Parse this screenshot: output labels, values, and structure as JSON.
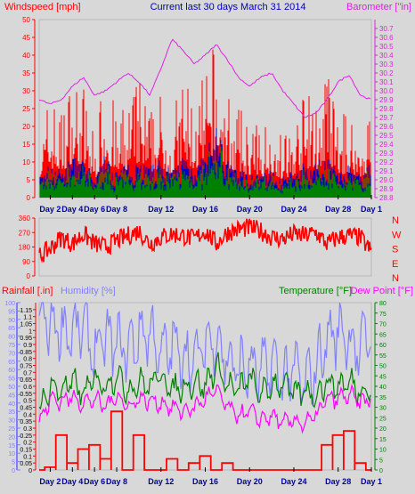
{
  "colors": {
    "background": "#d8d8d8",
    "wind": "#ff0000",
    "gust_fill": "#ff0000",
    "avg_fill": "#0000c0",
    "low_fill": "#008000",
    "barometer": "#e020e0",
    "title": "#0000c0",
    "humidity": "#8080ff",
    "temperature": "#008000",
    "dewpoint": "#ff00ff",
    "rainfall": "#ff0000",
    "axis_right_1": "#e020e0",
    "text_dark": "#000000"
  },
  "x_ticks": [
    "Day 2",
    "Day 4",
    "Day 6",
    "Day 8",
    "Day 12",
    "Day 16",
    "Day 20",
    "Day 24",
    "Day 28",
    "Day 1"
  ],
  "chart_data": [
    {
      "type": "area",
      "title": "Current last 30 days March 31 2014",
      "series": [
        {
          "name": "Windspeed [mph]",
          "axis": "left",
          "ylim": [
            0,
            50
          ],
          "ticks": [
            0,
            5,
            10,
            15,
            20,
            25,
            30,
            35,
            40,
            45,
            50
          ],
          "day": [
            1,
            2,
            3,
            4,
            5,
            6,
            7,
            8,
            9,
            10,
            11,
            12,
            13,
            14,
            15,
            16,
            17,
            18,
            19,
            20,
            21,
            22,
            23,
            24,
            25,
            26,
            27,
            28,
            29,
            30,
            31
          ],
          "gust_max": [
            16,
            24,
            20,
            28,
            26,
            14,
            30,
            18,
            22,
            28,
            20,
            24,
            18,
            30,
            22,
            28,
            37,
            24,
            20,
            18,
            16,
            20,
            14,
            18,
            24,
            22,
            30,
            18,
            20,
            16,
            22
          ],
          "avg_max": [
            6,
            10,
            9,
            12,
            11,
            6,
            13,
            8,
            10,
            12,
            9,
            11,
            8,
            13,
            10,
            12,
            22,
            11,
            9,
            8,
            7,
            9,
            6,
            8,
            11,
            10,
            13,
            8,
            9,
            7,
            10
          ]
        },
        {
          "name": "Barometer [\"in]",
          "axis": "right",
          "ylim": [
            28.8,
            30.8
          ],
          "ticks": [
            28.8,
            28.9,
            29.0,
            29.1,
            29.2,
            29.3,
            29.4,
            29.5,
            29.6,
            29.7,
            29.8,
            29.9,
            30.0,
            30.1,
            30.2,
            30.3,
            30.4,
            30.5,
            30.6,
            30.7
          ],
          "day": [
            1,
            2,
            3,
            4,
            5,
            6,
            7,
            8,
            9,
            10,
            11,
            12,
            13,
            14,
            15,
            16,
            17,
            18,
            19,
            20,
            21,
            22,
            23,
            24,
            25,
            26,
            27,
            28,
            29,
            30,
            31
          ],
          "values": [
            29.9,
            29.85,
            29.9,
            30.05,
            30.15,
            29.95,
            30.0,
            30.1,
            30.2,
            30.1,
            29.95,
            30.25,
            30.58,
            30.45,
            30.3,
            30.4,
            30.52,
            30.35,
            30.15,
            30.05,
            30.15,
            30.2,
            30.0,
            29.85,
            29.7,
            29.75,
            29.9,
            30.1,
            30.18,
            29.95,
            29.9
          ]
        }
      ]
    },
    {
      "type": "line",
      "series": [
        {
          "name": "Wind direction",
          "ylim": [
            0,
            360
          ],
          "ticks": [
            0,
            90,
            180,
            270,
            360
          ],
          "compass": [
            "N",
            "W",
            "S",
            "E",
            "N"
          ],
          "day": [
            1,
            2,
            3,
            4,
            5,
            6,
            7,
            8,
            9,
            10,
            11,
            12,
            13,
            14,
            15,
            16,
            17,
            18,
            19,
            20,
            21,
            22,
            23,
            24,
            25,
            26,
            27,
            28,
            29,
            30,
            31
          ],
          "values": [
            120,
            170,
            240,
            200,
            260,
            200,
            180,
            220,
            250,
            280,
            200,
            240,
            260,
            250,
            230,
            280,
            200,
            270,
            290,
            300,
            280,
            240,
            230,
            260,
            250,
            270,
            200,
            240,
            250,
            240,
            150
          ]
        }
      ]
    },
    {
      "type": "line",
      "series": [
        {
          "name": "Humidity [%]",
          "axis": "left_outer",
          "ylim": [
            0,
            100
          ],
          "ticks": [
            0,
            5,
            10,
            15,
            20,
            25,
            30,
            35,
            40,
            45,
            50,
            55,
            60,
            65,
            70,
            75,
            80,
            85,
            90,
            95,
            100
          ],
          "day": [
            1,
            2,
            3,
            4,
            5,
            6,
            7,
            8,
            9,
            10,
            11,
            12,
            13,
            14,
            15,
            16,
            17,
            18,
            19,
            20,
            21,
            22,
            23,
            24,
            25,
            26,
            27,
            28,
            29,
            30,
            31
          ],
          "values": [
            92,
            88,
            85,
            82,
            86,
            70,
            78,
            75,
            72,
            80,
            84,
            68,
            74,
            70,
            65,
            75,
            80,
            66,
            60,
            62,
            58,
            64,
            55,
            60,
            50,
            62,
            78,
            84,
            80,
            70,
            88
          ]
        },
        {
          "name": "Rainfall [.in]",
          "axis": "left_inner",
          "ylim": [
            0,
            1.2
          ],
          "ticks": [
            0,
            0.05,
            0.1,
            0.15,
            0.2,
            0.25,
            0.3,
            0.35,
            0.4,
            0.45,
            0.5,
            0.55,
            0.6,
            0.65,
            0.7,
            0.75,
            0.8,
            0.85,
            0.9,
            0.95,
            1,
            1.05,
            1.1,
            1.15
          ],
          "day": [
            1,
            2,
            3,
            4,
            5,
            6,
            7,
            8,
            9,
            10,
            11,
            12,
            13,
            14,
            15,
            16,
            17,
            18,
            19,
            20,
            21,
            22,
            23,
            24,
            25,
            26,
            27,
            28,
            29,
            30,
            31
          ],
          "values": [
            0.0,
            0.02,
            0.25,
            0.05,
            0.15,
            0.18,
            0.08,
            0.42,
            0.0,
            0.25,
            0.0,
            0.0,
            0.08,
            0.0,
            0.05,
            0.1,
            0.0,
            0.05,
            0.0,
            0.0,
            0.0,
            0.0,
            0.0,
            0.0,
            0.0,
            0.0,
            0.18,
            0.25,
            0.28,
            0.05,
            0.0
          ]
        },
        {
          "name": "Temperature [°F]",
          "axis": "right",
          "ylim": [
            0,
            80
          ],
          "ticks": [
            0,
            5,
            10,
            15,
            20,
            25,
            30,
            35,
            40,
            45,
            50,
            55,
            60,
            65,
            70,
            75,
            80
          ],
          "day": [
            1,
            2,
            3,
            4,
            5,
            6,
            7,
            8,
            9,
            10,
            11,
            12,
            13,
            14,
            15,
            16,
            17,
            18,
            19,
            20,
            21,
            22,
            23,
            24,
            25,
            26,
            27,
            28,
            29,
            30,
            31
          ],
          "values": [
            28,
            40,
            38,
            42,
            36,
            44,
            40,
            46,
            38,
            42,
            40,
            46,
            38,
            40,
            42,
            40,
            50,
            40,
            38,
            44,
            36,
            40,
            42,
            36,
            38,
            36,
            42,
            40,
            42,
            38,
            40
          ]
        },
        {
          "name": "Dew Point [°F]",
          "axis": "right",
          "ylim": [
            0,
            80
          ],
          "day": [
            1,
            2,
            3,
            4,
            5,
            6,
            7,
            8,
            9,
            10,
            11,
            12,
            13,
            14,
            15,
            16,
            17,
            18,
            19,
            20,
            21,
            22,
            23,
            24,
            25,
            26,
            27,
            28,
            29,
            30,
            31
          ],
          "values": [
            22,
            34,
            33,
            35,
            32,
            34,
            30,
            36,
            30,
            34,
            33,
            32,
            30,
            28,
            30,
            34,
            38,
            30,
            26,
            28,
            24,
            26,
            22,
            24,
            22,
            26,
            34,
            34,
            36,
            32,
            34
          ]
        }
      ]
    }
  ]
}
